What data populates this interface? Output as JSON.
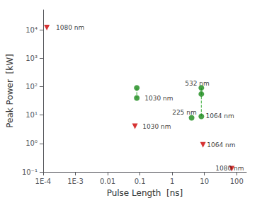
{
  "chart_data": {
    "type": "scatter",
    "log": true,
    "grid": false,
    "xlabel": "Pulse Length  [ns]",
    "ylabel": "Peak Power  [kW]",
    "xlim": [
      0.0001,
      200
    ],
    "ylim": [
      0.1,
      50000
    ],
    "xticks": [
      {
        "value": 0.0001,
        "label": "1E-4"
      },
      {
        "value": 0.001,
        "label": "1E-3"
      },
      0.01,
      0.1,
      1,
      10,
      100
    ],
    "yticks": [
      {
        "value": 0.1,
        "label": "10⁻¹"
      },
      {
        "value": 1,
        "label": "10⁰"
      },
      {
        "value": 10,
        "label": "10¹"
      },
      {
        "value": 100,
        "label": "10²"
      },
      {
        "value": 1000,
        "label": "10³"
      },
      {
        "value": 10000,
        "label": "10⁴"
      }
    ],
    "series": [
      {
        "type": "line",
        "line_style": "dashed",
        "color": "#33aa33",
        "x": [
          0.08,
          0.08
        ],
        "y": [
          90,
          40
        ]
      },
      {
        "type": "line",
        "line_style": "dashed",
        "color": "#33aa33",
        "x": [
          8,
          8
        ],
        "y": [
          90,
          9
        ]
      },
      {
        "type": "scatter",
        "marker": "circle",
        "color": "#1a8a1a",
        "x": [
          0.08,
          0.08,
          8,
          8,
          4,
          8
        ],
        "y": [
          90,
          40,
          90,
          55,
          8,
          9
        ]
      },
      {
        "type": "scatter",
        "marker": "triangle-down",
        "color": "#cc0000",
        "x": [
          0.00013,
          0.07,
          9,
          70
        ],
        "y": [
          12000,
          4,
          0.9,
          0.13
        ]
      }
    ],
    "annotations": [
      {
        "text": "1080 nm",
        "x": 0.00025,
        "y": 12000
      },
      {
        "text": "1030 nm",
        "x": 0.12,
        "y": 4
      },
      {
        "text": "1030 nm",
        "x": 0.14,
        "y": 38
      },
      {
        "text": "532 nm",
        "x": 2.5,
        "y": 130
      },
      {
        "text": "225 nm",
        "x": 1.0,
        "y": 12
      },
      {
        "text": "1064 nm",
        "x": 11,
        "y": 9
      },
      {
        "text": "1064 nm",
        "x": 12,
        "y": 0.9
      },
      {
        "text": "1080 nm",
        "x": 22,
        "y": 0.13
      }
    ]
  }
}
